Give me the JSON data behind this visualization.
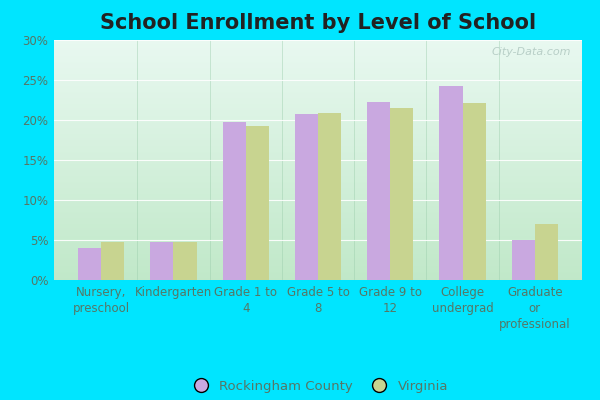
{
  "title": "School Enrollment by Level of School",
  "categories": [
    "Nursery,\npreschool",
    "Kindergarten",
    "Grade 1 to\n4",
    "Grade 5 to\n8",
    "Grade 9 to\n12",
    "College\nundergrad",
    "Graduate\nor\nprofessional"
  ],
  "rockingham": [
    4.0,
    4.8,
    19.8,
    20.8,
    22.2,
    24.2,
    5.0
  ],
  "virginia": [
    4.8,
    4.7,
    19.2,
    20.9,
    21.5,
    22.1,
    7.0
  ],
  "rockingham_color": "#c9a8e0",
  "virginia_color": "#c8d490",
  "bg_outer": "#00e5ff",
  "bg_inner_top": "#e8f8f0",
  "bg_inner_bottom": "#c0e8c8",
  "ylim": [
    0,
    30
  ],
  "yticks": [
    0,
    5,
    10,
    15,
    20,
    25,
    30
  ],
  "legend_labels": [
    "Rockingham County",
    "Virginia"
  ],
  "watermark": "City-Data.com",
  "title_fontsize": 15,
  "label_fontsize": 8.5,
  "bar_width": 0.32
}
